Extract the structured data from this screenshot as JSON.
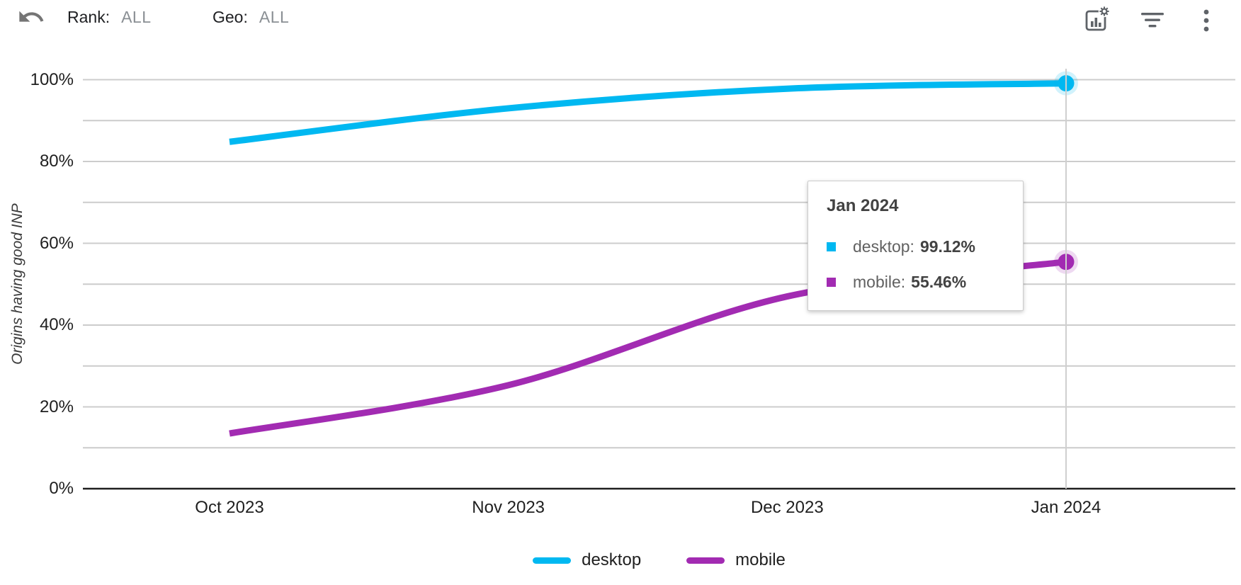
{
  "toolbar": {
    "undo_icon": "undo-icon",
    "rank_label": "Rank:",
    "rank_value": "ALL",
    "geo_label": "Geo:",
    "geo_value": "ALL",
    "right_icons": [
      "chart-settings-icon",
      "filter-icon",
      "more-vertical-icon"
    ]
  },
  "chart_data": {
    "type": "line",
    "title": "",
    "ylabel": "Origins having good INP",
    "categories": [
      "Oct 2023",
      "Nov 2023",
      "Dec 2023",
      "Jan 2024"
    ],
    "series": [
      {
        "name": "desktop",
        "color": "#00B8F1",
        "values": [
          84.8,
          93.0,
          97.8,
          99.12
        ]
      },
      {
        "name": "mobile",
        "color": "#A22BB2",
        "values": [
          13.5,
          25.3,
          47.0,
          55.46
        ]
      }
    ],
    "ylim": [
      0,
      100
    ],
    "y_ticks": [
      "0%",
      "20%",
      "40%",
      "60%",
      "80%",
      "100%"
    ],
    "gridline_step_percent": 10,
    "grid": true,
    "legend_position": "bottom",
    "highlighted_category": "Jan 2024",
    "colors": {
      "grid": "#CCCCCC",
      "axis": "#1f1f1f",
      "crosshair": "#CFCFCF"
    }
  },
  "tooltip": {
    "title": "Jan 2024",
    "rows": [
      {
        "label": "desktop:",
        "value": "99.12%"
      },
      {
        "label": "mobile:",
        "value": "55.46%"
      }
    ]
  }
}
